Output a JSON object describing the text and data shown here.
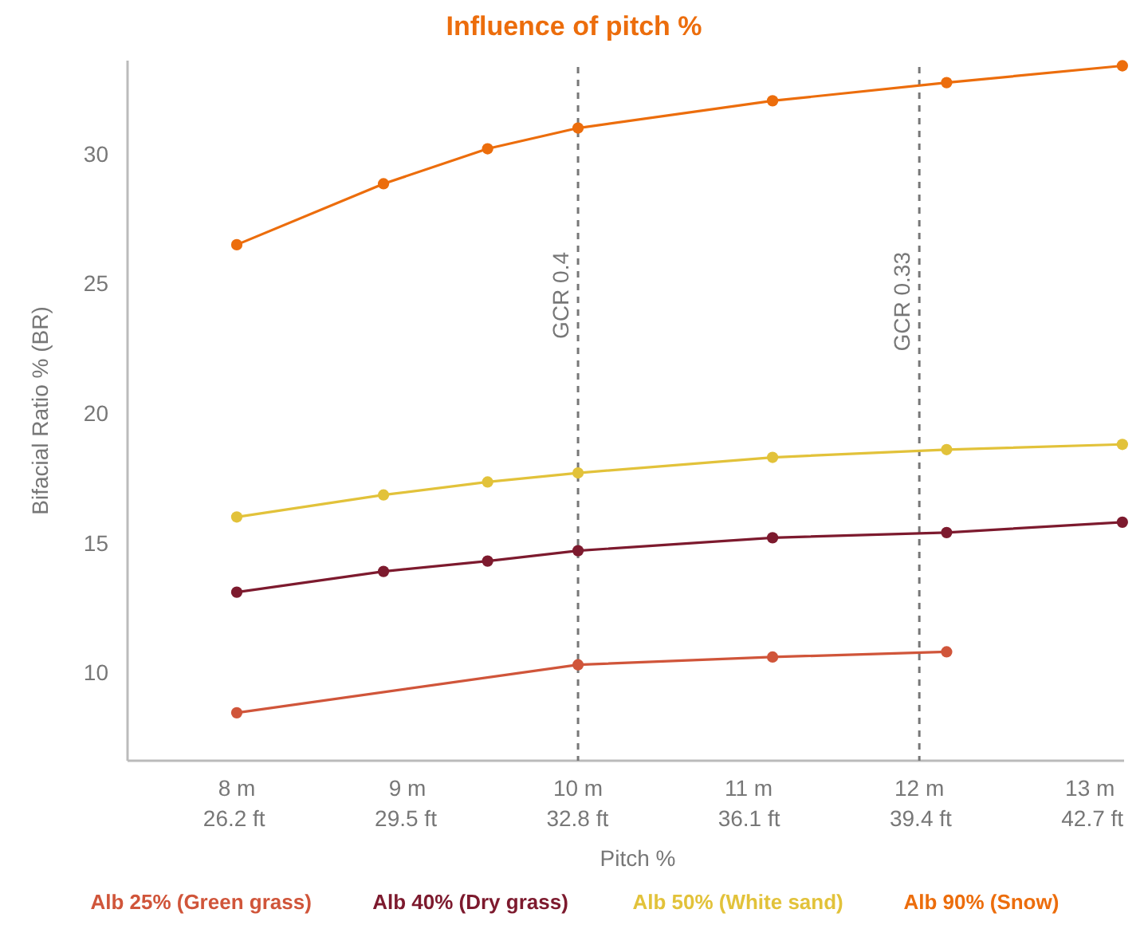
{
  "chart_data": {
    "type": "line",
    "title": "Influence of pitch %",
    "xlabel": "Pitch %",
    "ylabel": "Bifacial Ratio % (BR)",
    "xlim": [
      7.36,
      13.2
    ],
    "ylim": [
      6.6,
      33.6
    ],
    "xticks": [
      {
        "value": 8,
        "label": "8 m"
      },
      {
        "value": 9,
        "label": "9 m"
      },
      {
        "value": 10,
        "label": "10 m"
      },
      {
        "value": 11,
        "label": "11 m"
      },
      {
        "value": 12,
        "label": "12 m"
      },
      {
        "value": 13,
        "label": "13 m"
      }
    ],
    "x2lim": [
      24.15,
      43.31
    ],
    "x2ticks": [
      {
        "value": 26.2,
        "label": "26.2 ft"
      },
      {
        "value": 29.5,
        "label": "29.5 ft"
      },
      {
        "value": 32.8,
        "label": "32.8 ft"
      },
      {
        "value": 36.1,
        "label": "36.1 ft"
      },
      {
        "value": 39.4,
        "label": "39.4 ft"
      },
      {
        "value": 42.7,
        "label": "42.7 ft"
      }
    ],
    "yticks": [
      10,
      15,
      20,
      25,
      30
    ],
    "grid": false,
    "legend": "bottom",
    "marker": "circle",
    "line_style": "solid",
    "ref_lines": [
      {
        "axis": "x",
        "value": 10,
        "label": "GCR 0.4",
        "color": "#777777",
        "line_style": "dashed"
      },
      {
        "axis": "x",
        "value": 12,
        "label": "GCR 0.33",
        "color": "#777777",
        "line_style": "dashed"
      }
    ],
    "series": [
      {
        "name": "Alb 25% (Green grass)",
        "color": "#d0553a",
        "x": [
          8,
          10,
          11.14,
          12.16
        ],
        "values": [
          8.45,
          10.3,
          10.6,
          10.8
        ]
      },
      {
        "name": "Alb 40% (Dry grass)",
        "color": "#7d1a2e",
        "x": [
          8,
          8.86,
          9.47,
          10,
          11.14,
          12.16,
          13.19
        ],
        "values": [
          13.1,
          13.9,
          14.3,
          14.7,
          15.2,
          15.4,
          15.8
        ]
      },
      {
        "name": "Alb 50% (White sand)",
        "color": "#e2c23a",
        "x": [
          8,
          8.86,
          9.47,
          10,
          11.14,
          12.16,
          13.19
        ],
        "values": [
          16.0,
          16.85,
          17.35,
          17.7,
          18.3,
          18.6,
          18.8
        ]
      },
      {
        "name": "Alb 90% (Snow)",
        "color": "#ec6d0c",
        "x": [
          8,
          8.86,
          9.47,
          10,
          11.14,
          12.16,
          13.19
        ],
        "values": [
          26.5,
          28.85,
          30.2,
          31.0,
          32.05,
          32.75,
          33.4
        ]
      }
    ]
  }
}
